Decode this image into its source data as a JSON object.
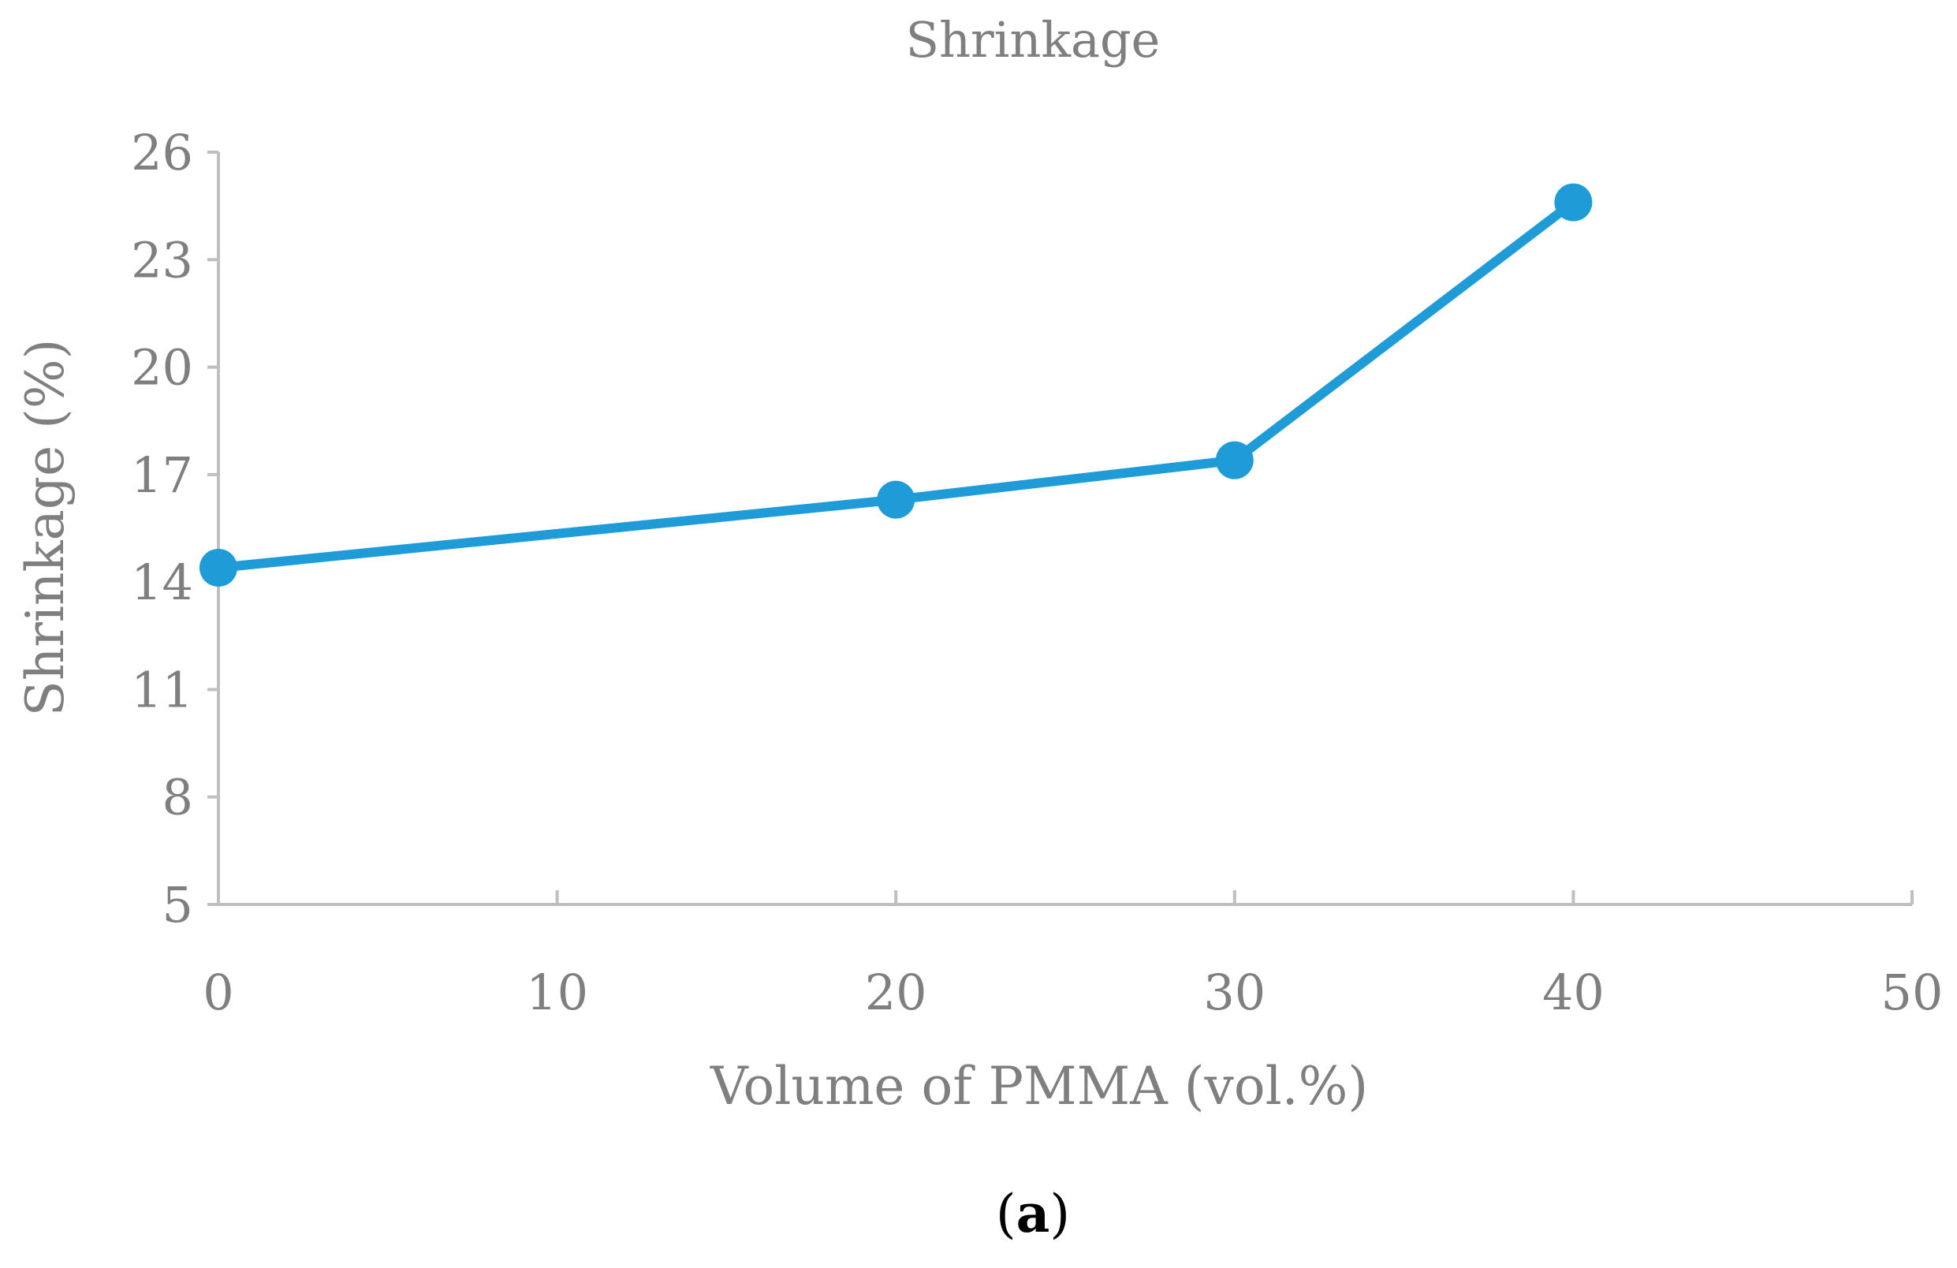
{
  "chart_data": {
    "type": "line",
    "title": "Shrinkage",
    "xlabel": "Volume of PMMA (vol.%)",
    "ylabel": "Shrinkage (%)",
    "xlim": [
      0,
      50
    ],
    "ylim": [
      5,
      26
    ],
    "x_ticks": [
      "0",
      "10",
      "20",
      "30",
      "40",
      "50"
    ],
    "y_ticks": [
      "5",
      "8",
      "11",
      "14",
      "17",
      "20",
      "23",
      "26"
    ],
    "grid": false,
    "series": [
      {
        "x": [
          0,
          20,
          30,
          40
        ],
        "y": [
          14.4,
          16.3,
          17.4,
          24.6
        ],
        "color": "#1f9cd8",
        "marker": "circle"
      }
    ],
    "axis_color": "#bfbfbf",
    "text_color": "#7f7f7f"
  },
  "panel_label": {
    "open": "(",
    "letter": "a",
    "close": ")"
  }
}
